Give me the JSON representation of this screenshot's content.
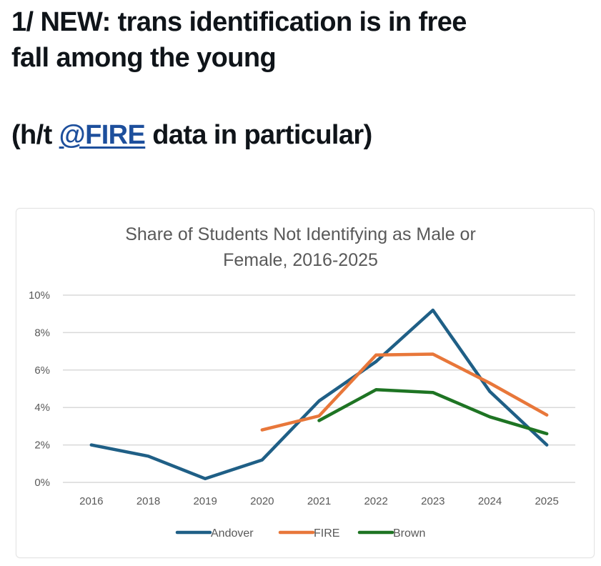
{
  "post": {
    "line1": "1/ NEW: trans identification is in free",
    "line2": "fall among the young",
    "line3_prefix": "(h/t ",
    "line3_mention": "@FIRE",
    "line3_suffix": " data in particular)"
  },
  "chart_data": {
    "type": "line",
    "title_line1": "Share of Students Not Identifying as Male or",
    "title_line2": "Female, 2016-2025",
    "xlabel": "",
    "ylabel": "",
    "categories": [
      "2016",
      "2018",
      "2019",
      "2020",
      "2021",
      "2022",
      "2023",
      "2024",
      "2025"
    ],
    "ylim": [
      0,
      10
    ],
    "yticks": [
      0,
      2,
      4,
      6,
      8,
      10
    ],
    "ytick_labels": [
      "0%",
      "2%",
      "4%",
      "6%",
      "8%",
      "10%"
    ],
    "grid": true,
    "legend_position": "bottom",
    "series": [
      {
        "name": "Andover",
        "color": "#1f5f86",
        "values": [
          2.0,
          1.4,
          0.2,
          1.2,
          4.35,
          6.45,
          9.2,
          4.85,
          2.0
        ]
      },
      {
        "name": "FIRE",
        "color": "#e8773a",
        "values": [
          null,
          null,
          null,
          2.8,
          3.55,
          6.8,
          6.85,
          5.3,
          3.6
        ]
      },
      {
        "name": "Brown",
        "color": "#1e7423",
        "values": [
          null,
          null,
          null,
          null,
          3.3,
          4.95,
          4.8,
          3.5,
          2.6
        ]
      }
    ]
  }
}
